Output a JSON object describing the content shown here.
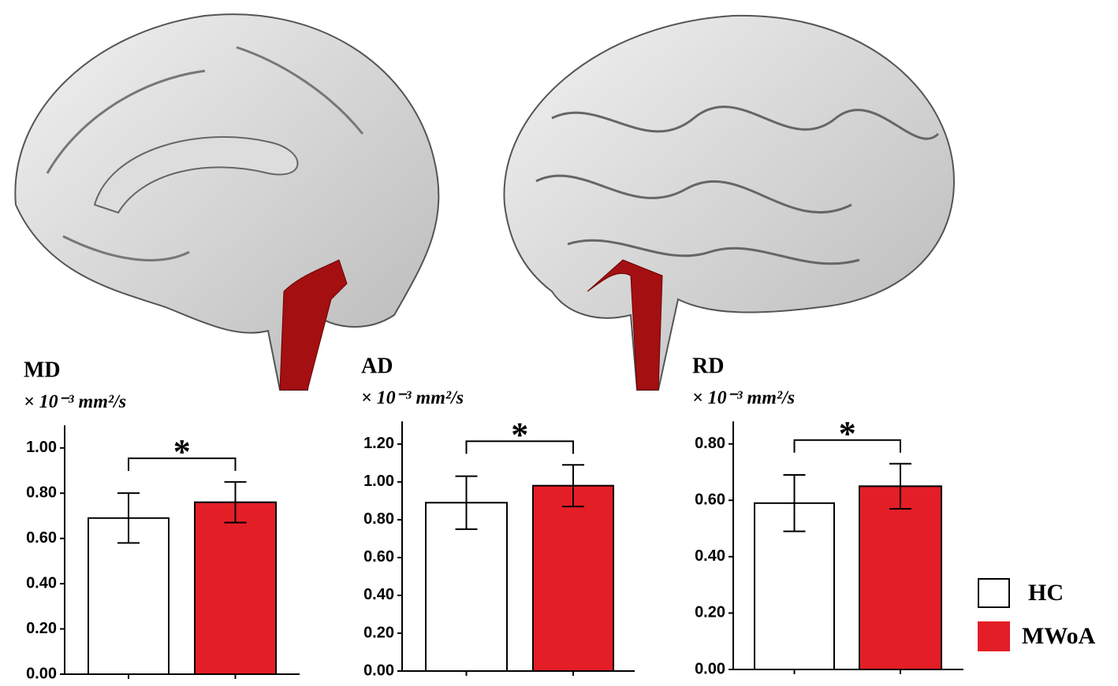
{
  "chart_data": [
    {
      "type": "bar",
      "title": "MD",
      "subtitle": "× 10⁻³ mm²/s",
      "annotation": "*",
      "values": [
        0.69,
        0.76
      ],
      "errors": [
        0.11,
        0.09
      ],
      "ylim": [
        0,
        1.1
      ],
      "yticks": [
        {
          "value": 0,
          "label": "0.00"
        },
        {
          "value": 0.2,
          "label": "0.20"
        },
        {
          "value": 0.4,
          "label": "0.40"
        },
        {
          "value": 0.6,
          "label": "0.60"
        },
        {
          "value": 0.8,
          "label": "0.80"
        },
        {
          "value": 1.0,
          "label": "1.00"
        }
      ]
    },
    {
      "type": "bar",
      "title": "AD",
      "subtitle": "× 10⁻³ mm²/s",
      "annotation": "*",
      "values": [
        0.89,
        0.98
      ],
      "errors": [
        0.14,
        0.11
      ],
      "ylim": [
        0,
        1.32
      ],
      "yticks": [
        {
          "value": 0,
          "label": "0.00"
        },
        {
          "value": 0.2,
          "label": "0.20"
        },
        {
          "value": 0.4,
          "label": "0.40"
        },
        {
          "value": 0.6,
          "label": "0.60"
        },
        {
          "value": 0.8,
          "label": "0.80"
        },
        {
          "value": 1.0,
          "label": "1.00"
        },
        {
          "value": 1.2,
          "label": "1.20"
        }
      ]
    },
    {
      "type": "bar",
      "title": "RD",
      "subtitle": "× 10⁻³ mm²/s",
      "annotation": "*",
      "values": [
        0.59,
        0.65
      ],
      "errors": [
        0.1,
        0.08
      ],
      "ylim": [
        0,
        0.88
      ],
      "yticks": [
        {
          "value": 0,
          "label": "0.00"
        },
        {
          "value": 0.2,
          "label": "0.20"
        },
        {
          "value": 0.4,
          "label": "0.40"
        },
        {
          "value": 0.6,
          "label": "0.60"
        },
        {
          "value": 0.8,
          "label": "0.80"
        }
      ]
    }
  ],
  "legend": {
    "items": [
      {
        "name": "HC",
        "color": "#ffffff"
      },
      {
        "name": "MWoA",
        "color": "#e41e26"
      }
    ]
  }
}
